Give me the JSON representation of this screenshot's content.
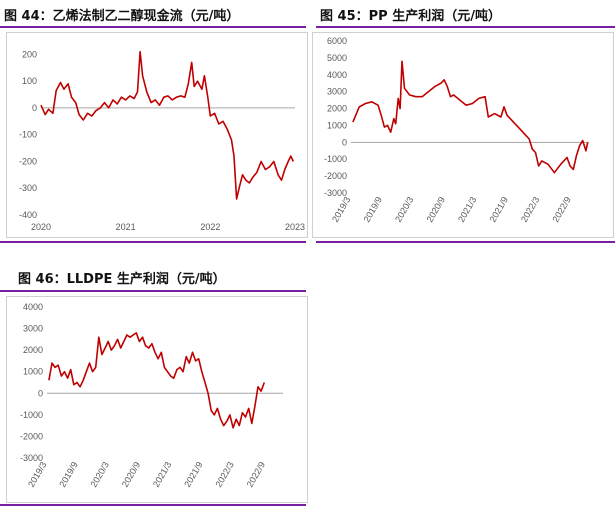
{
  "panels": [
    {
      "title": "图 44：乙烯法制乙二醇现金流（元/吨）"
    },
    {
      "title": "图 45：PP 生产利润（元/吨）"
    },
    {
      "title": "图 46：LLDPE 生产利润（元/吨）"
    }
  ],
  "chart_data": [
    {
      "type": "line",
      "title": "图 44：乙烯法制乙二醇现金流（元/吨）",
      "series_color": "#c00000",
      "ylim": [
        -400,
        250
      ],
      "yticks": [
        -400,
        -300,
        -200,
        -100,
        0,
        100,
        200
      ],
      "xlim": [
        2020.0,
        2023.0
      ],
      "xticks": [
        {
          "v": 2020.0,
          "label": "2020"
        },
        {
          "v": 2021.0,
          "label": "2021"
        },
        {
          "v": 2022.0,
          "label": "2022"
        },
        {
          "v": 2023.0,
          "label": "2023"
        }
      ],
      "x_tick_rotate": false,
      "grid": false,
      "points": [
        [
          2020.0,
          10
        ],
        [
          2020.05,
          -25
        ],
        [
          2020.09,
          -5
        ],
        [
          2020.14,
          -20
        ],
        [
          2020.18,
          65
        ],
        [
          2020.23,
          95
        ],
        [
          2020.27,
          70
        ],
        [
          2020.32,
          90
        ],
        [
          2020.36,
          40
        ],
        [
          2020.41,
          20
        ],
        [
          2020.45,
          -25
        ],
        [
          2020.5,
          -45
        ],
        [
          2020.55,
          -20
        ],
        [
          2020.6,
          -30
        ],
        [
          2020.65,
          -10
        ],
        [
          2020.7,
          0
        ],
        [
          2020.75,
          20
        ],
        [
          2020.8,
          0
        ],
        [
          2020.85,
          30
        ],
        [
          2020.9,
          15
        ],
        [
          2020.95,
          40
        ],
        [
          2021.0,
          30
        ],
        [
          2021.05,
          45
        ],
        [
          2021.1,
          35
        ],
        [
          2021.14,
          60
        ],
        [
          2021.17,
          210
        ],
        [
          2021.2,
          120
        ],
        [
          2021.25,
          60
        ],
        [
          2021.3,
          20
        ],
        [
          2021.35,
          30
        ],
        [
          2021.4,
          10
        ],
        [
          2021.45,
          40
        ],
        [
          2021.5,
          45
        ],
        [
          2021.55,
          30
        ],
        [
          2021.6,
          40
        ],
        [
          2021.65,
          45
        ],
        [
          2021.7,
          40
        ],
        [
          2021.74,
          90
        ],
        [
          2021.78,
          170
        ],
        [
          2021.81,
          80
        ],
        [
          2021.85,
          100
        ],
        [
          2021.9,
          70
        ],
        [
          2021.93,
          120
        ],
        [
          2021.97,
          40
        ],
        [
          2022.0,
          -30
        ],
        [
          2022.05,
          -20
        ],
        [
          2022.1,
          -60
        ],
        [
          2022.15,
          -50
        ],
        [
          2022.2,
          -80
        ],
        [
          2022.25,
          -120
        ],
        [
          2022.28,
          -180
        ],
        [
          2022.31,
          -340
        ],
        [
          2022.34,
          -300
        ],
        [
          2022.38,
          -250
        ],
        [
          2022.42,
          -270
        ],
        [
          2022.46,
          -280
        ],
        [
          2022.5,
          -260
        ],
        [
          2022.55,
          -240
        ],
        [
          2022.6,
          -200
        ],
        [
          2022.65,
          -230
        ],
        [
          2022.7,
          -220
        ],
        [
          2022.75,
          -200
        ],
        [
          2022.8,
          -250
        ],
        [
          2022.84,
          -270
        ],
        [
          2022.88,
          -230
        ],
        [
          2022.92,
          -200
        ],
        [
          2022.95,
          -180
        ],
        [
          2022.98,
          -200
        ]
      ]
    },
    {
      "type": "line",
      "title": "图 45：PP 生产利润（元/吨）",
      "series_color": "#c00000",
      "ylim": [
        -3000,
        6000
      ],
      "yticks": [
        -3000,
        -2000,
        -1000,
        0,
        1000,
        2000,
        3000,
        4000,
        5000,
        6000
      ],
      "xlim": [
        2019.17,
        2022.95
      ],
      "xticks": [
        {
          "v": 2019.167,
          "label": "2019/3"
        },
        {
          "v": 2019.667,
          "label": "2019/9"
        },
        {
          "v": 2020.167,
          "label": "2020/3"
        },
        {
          "v": 2020.667,
          "label": "2020/9"
        },
        {
          "v": 2021.167,
          "label": "2021/3"
        },
        {
          "v": 2021.667,
          "label": "2021/9"
        },
        {
          "v": 2022.167,
          "label": "2022/3"
        },
        {
          "v": 2022.667,
          "label": "2022/9"
        }
      ],
      "x_tick_rotate": true,
      "grid": false,
      "points": [
        [
          2019.2,
          1200
        ],
        [
          2019.3,
          2100
        ],
        [
          2019.4,
          2300
        ],
        [
          2019.5,
          2400
        ],
        [
          2019.6,
          2200
        ],
        [
          2019.65,
          1600
        ],
        [
          2019.7,
          900
        ],
        [
          2019.75,
          1000
        ],
        [
          2019.8,
          600
        ],
        [
          2019.85,
          1400
        ],
        [
          2019.88,
          1100
        ],
        [
          2019.92,
          2600
        ],
        [
          2019.95,
          2000
        ],
        [
          2019.98,
          4800
        ],
        [
          2020.02,
          3200
        ],
        [
          2020.1,
          2800
        ],
        [
          2020.2,
          2700
        ],
        [
          2020.3,
          2700
        ],
        [
          2020.4,
          3000
        ],
        [
          2020.5,
          3300
        ],
        [
          2020.6,
          3500
        ],
        [
          2020.65,
          3700
        ],
        [
          2020.7,
          3300
        ],
        [
          2020.75,
          2700
        ],
        [
          2020.8,
          2800
        ],
        [
          2020.9,
          2500
        ],
        [
          2021.0,
          2200
        ],
        [
          2021.1,
          2300
        ],
        [
          2021.2,
          2600
        ],
        [
          2021.3,
          2700
        ],
        [
          2021.35,
          1500
        ],
        [
          2021.45,
          1700
        ],
        [
          2021.55,
          1500
        ],
        [
          2021.6,
          2100
        ],
        [
          2021.65,
          1600
        ],
        [
          2021.7,
          1400
        ],
        [
          2021.75,
          1200
        ],
        [
          2021.8,
          1000
        ],
        [
          2021.9,
          600
        ],
        [
          2022.0,
          200
        ],
        [
          2022.05,
          -400
        ],
        [
          2022.1,
          -600
        ],
        [
          2022.15,
          -1400
        ],
        [
          2022.2,
          -1100
        ],
        [
          2022.3,
          -1300
        ],
        [
          2022.4,
          -1800
        ],
        [
          2022.5,
          -1300
        ],
        [
          2022.6,
          -900
        ],
        [
          2022.65,
          -1400
        ],
        [
          2022.7,
          -1600
        ],
        [
          2022.75,
          -800
        ],
        [
          2022.8,
          -200
        ],
        [
          2022.85,
          100
        ],
        [
          2022.9,
          -500
        ],
        [
          2022.93,
          0
        ]
      ]
    },
    {
      "type": "line",
      "title": "图 46：LLDPE 生产利润（元/吨）",
      "series_color": "#c00000",
      "ylim": [
        -3000,
        4000
      ],
      "yticks": [
        -3000,
        -2000,
        -1000,
        0,
        1000,
        2000,
        3000,
        4000
      ],
      "xlim": [
        2019.17,
        2022.95
      ],
      "xticks": [
        {
          "v": 2019.167,
          "label": "2019/3"
        },
        {
          "v": 2019.667,
          "label": "2019/9"
        },
        {
          "v": 2020.167,
          "label": "2020/3"
        },
        {
          "v": 2020.667,
          "label": "2020/9"
        },
        {
          "v": 2021.167,
          "label": "2021/3"
        },
        {
          "v": 2021.667,
          "label": "2021/9"
        },
        {
          "v": 2022.167,
          "label": "2022/3"
        },
        {
          "v": 2022.667,
          "label": "2022/9"
        }
      ],
      "x_tick_rotate": true,
      "grid": false,
      "points": [
        [
          2019.2,
          600
        ],
        [
          2019.25,
          1400
        ],
        [
          2019.3,
          1200
        ],
        [
          2019.35,
          1300
        ],
        [
          2019.4,
          800
        ],
        [
          2019.45,
          1000
        ],
        [
          2019.5,
          700
        ],
        [
          2019.55,
          1100
        ],
        [
          2019.6,
          400
        ],
        [
          2019.65,
          500
        ],
        [
          2019.7,
          300
        ],
        [
          2019.75,
          600
        ],
        [
          2019.8,
          1000
        ],
        [
          2019.85,
          1400
        ],
        [
          2019.9,
          1000
        ],
        [
          2019.95,
          1200
        ],
        [
          2020.0,
          2600
        ],
        [
          2020.05,
          1800
        ],
        [
          2020.1,
          2100
        ],
        [
          2020.15,
          2400
        ],
        [
          2020.2,
          2000
        ],
        [
          2020.25,
          2200
        ],
        [
          2020.3,
          2500
        ],
        [
          2020.35,
          2100
        ],
        [
          2020.4,
          2400
        ],
        [
          2020.45,
          2700
        ],
        [
          2020.5,
          2600
        ],
        [
          2020.55,
          2700
        ],
        [
          2020.6,
          2800
        ],
        [
          2020.65,
          2400
        ],
        [
          2020.7,
          2600
        ],
        [
          2020.75,
          2200
        ],
        [
          2020.8,
          2100
        ],
        [
          2020.85,
          2300
        ],
        [
          2020.9,
          1900
        ],
        [
          2020.95,
          1600
        ],
        [
          2021.0,
          1900
        ],
        [
          2021.05,
          1200
        ],
        [
          2021.1,
          1000
        ],
        [
          2021.15,
          800
        ],
        [
          2021.2,
          700
        ],
        [
          2021.25,
          1100
        ],
        [
          2021.3,
          1200
        ],
        [
          2021.35,
          1000
        ],
        [
          2021.4,
          1700
        ],
        [
          2021.45,
          1400
        ],
        [
          2021.5,
          1900
        ],
        [
          2021.55,
          1500
        ],
        [
          2021.6,
          1600
        ],
        [
          2021.65,
          1000
        ],
        [
          2021.7,
          500
        ],
        [
          2021.75,
          0
        ],
        [
          2021.8,
          -800
        ],
        [
          2021.85,
          -1000
        ],
        [
          2021.9,
          -700
        ],
        [
          2021.95,
          -1200
        ],
        [
          2022.0,
          -1500
        ],
        [
          2022.05,
          -1300
        ],
        [
          2022.1,
          -1000
        ],
        [
          2022.15,
          -1600
        ],
        [
          2022.2,
          -1200
        ],
        [
          2022.25,
          -1500
        ],
        [
          2022.3,
          -900
        ],
        [
          2022.35,
          -1100
        ],
        [
          2022.4,
          -700
        ],
        [
          2022.45,
          -1400
        ],
        [
          2022.5,
          -600
        ],
        [
          2022.55,
          300
        ],
        [
          2022.6,
          100
        ],
        [
          2022.65,
          500
        ]
      ]
    }
  ]
}
